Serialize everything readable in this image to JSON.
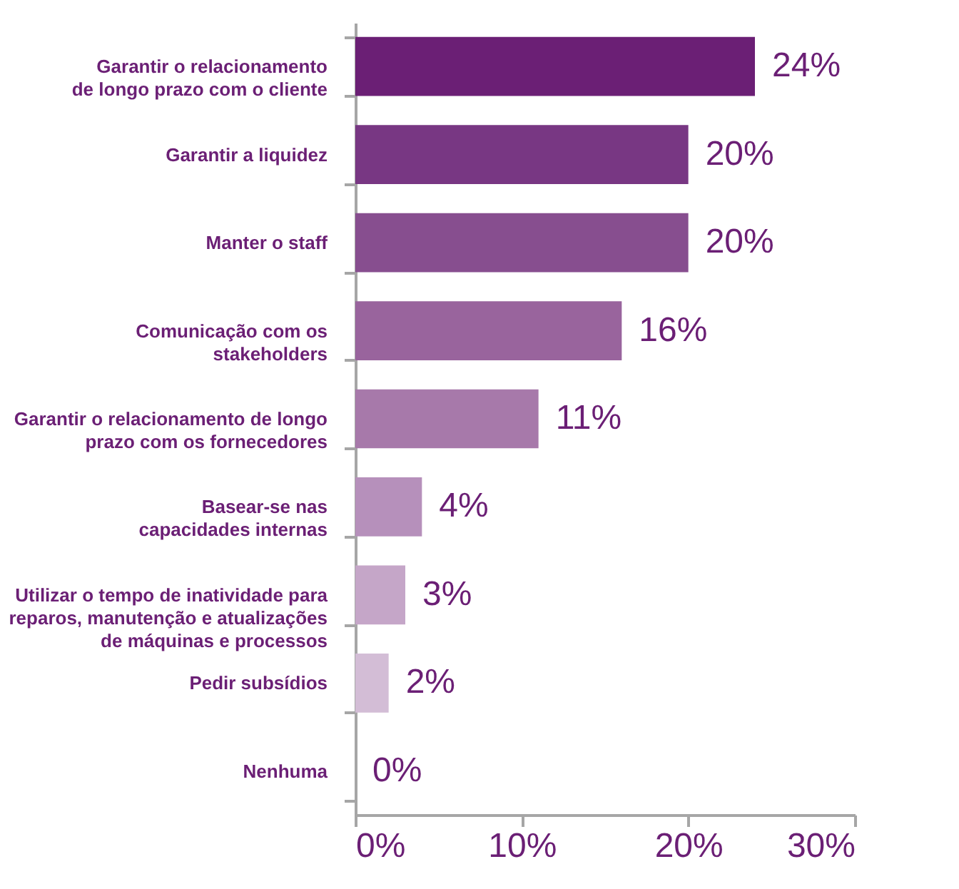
{
  "chart_data": {
    "type": "bar",
    "orientation": "horizontal",
    "categories": [
      "Garantir o relacionamento\nde longo prazo com o cliente",
      "Garantir a  liquidez",
      "Manter o staff",
      "Comunicação com os\nstakeholders",
      "Garantir o relacionamento de longo\nprazo com os fornecedores",
      "Basear-se nas\ncapacidades internas",
      "Utilizar o tempo de inatividade para\nreparos, manutenção e atualizações\nde máquinas e processos",
      "Pedir subsídios",
      "Nenhuma"
    ],
    "values": [
      24,
      20,
      20,
      16,
      11,
      4,
      3,
      2,
      0
    ],
    "value_labels": [
      "24%",
      "20%",
      "20%",
      "16%",
      "11%",
      "4%",
      "3%",
      "2%",
      "0%"
    ],
    "colors": [
      "#6b1f75",
      "#783783",
      "#874e8f",
      "#99649d",
      "#a779aa",
      "#b690bb",
      "#c5a6c8",
      "#d3bdd6",
      "#e2d3e4"
    ],
    "xlim": [
      0,
      30
    ],
    "xticks": [
      {
        "value": 0,
        "label": "0%"
      },
      {
        "value": 10,
        "label": "10%"
      },
      {
        "value": 20,
        "label": "20%"
      },
      {
        "value": 30,
        "label": "30%"
      }
    ],
    "grid": false
  }
}
